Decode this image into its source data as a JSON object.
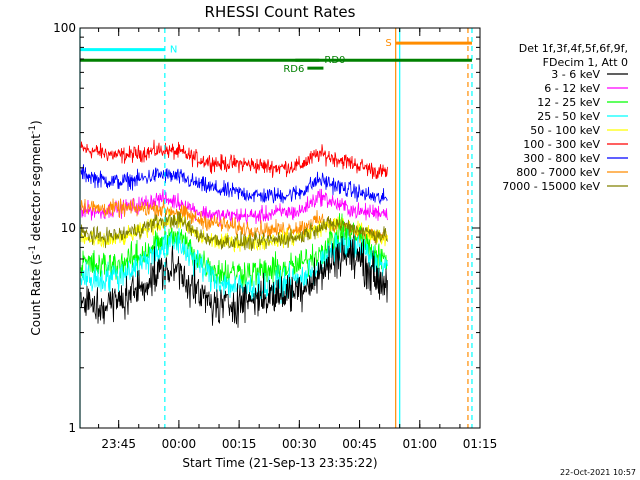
{
  "chart_data": {
    "type": "line",
    "title": "RHESSI Count Rates",
    "xlabel": "Start Time (21-Sep-13 23:35:22)",
    "ylabel_main": "Count Rate (s",
    "ylabel_sup1": "-1",
    "ylabel_mid": " detector segment",
    "ylabel_sup2": "-1",
    "ylabel_end": ")",
    "y_scale": "log",
    "ylim": [
      1,
      100
    ],
    "xlim": [
      "23:35:22",
      "01:15:00"
    ],
    "x_ticks": [
      "23:45",
      "00:00",
      "00:15",
      "00:30",
      "00:45",
      "01:00",
      "01:15"
    ],
    "y_ticks": [
      "1",
      "10",
      "100"
    ],
    "legend_header": [
      "Det 1f,3f,4f,5f,6f,9f,",
      "FDecim 1, Att 0"
    ],
    "legend_position": "right",
    "series": [
      {
        "name": "3 - 6 keV",
        "color": "#000000",
        "x": [
          "23:35:22",
          "23:40",
          "23:45",
          "23:50",
          "23:55",
          "00:00",
          "00:05",
          "00:10",
          "00:15",
          "00:20",
          "00:25",
          "00:30",
          "00:35",
          "00:40",
          "00:45",
          "00:50"
        ],
        "values": [
          4.2,
          4.0,
          4.3,
          5.0,
          6.0,
          6.3,
          4.6,
          4.0,
          4.3,
          4.5,
          4.6,
          5.0,
          5.8,
          7.5,
          7.0,
          5.4
        ]
      },
      {
        "name": "6 - 12 keV",
        "color": "#ff00ff",
        "x": [
          "23:35:22",
          "23:40",
          "23:45",
          "23:50",
          "23:55",
          "00:00",
          "00:05",
          "00:10",
          "00:15",
          "00:20",
          "00:25",
          "00:30",
          "00:35",
          "00:40",
          "00:45",
          "00:50"
        ],
        "values": [
          12.5,
          12.0,
          12.5,
          13.0,
          14.0,
          13.5,
          12.0,
          11.5,
          11.5,
          11.5,
          12.0,
          12.0,
          14.5,
          13.0,
          12.0,
          12.0
        ]
      },
      {
        "name": "12 - 25 keV",
        "color": "#00ff00",
        "x": [
          "23:35:22",
          "23:40",
          "23:45",
          "23:50",
          "23:55",
          "00:00",
          "00:05",
          "00:10",
          "00:15",
          "00:20",
          "00:25",
          "00:30",
          "00:35",
          "00:40",
          "00:45",
          "00:50"
        ],
        "values": [
          6.8,
          6.4,
          6.6,
          7.2,
          8.5,
          9.0,
          7.0,
          6.0,
          6.0,
          6.0,
          6.2,
          6.5,
          7.5,
          9.5,
          9.0,
          7.0
        ]
      },
      {
        "name": "25 - 50 keV",
        "color": "#00ffff",
        "x": [
          "23:35:22",
          "23:40",
          "23:45",
          "23:50",
          "23:55",
          "00:00",
          "00:05",
          "00:10",
          "00:15",
          "00:20",
          "00:25",
          "00:30",
          "00:35",
          "00:40",
          "00:45",
          "00:50"
        ],
        "values": [
          5.8,
          5.5,
          5.8,
          6.5,
          7.8,
          8.5,
          6.5,
          5.4,
          5.0,
          5.0,
          5.2,
          5.5,
          6.5,
          8.2,
          8.0,
          6.5
        ]
      },
      {
        "name": "50 - 100 keV",
        "color": "#ffff00",
        "x": [
          "23:35:22",
          "23:40",
          "23:45",
          "23:50",
          "23:55",
          "00:00",
          "00:05",
          "00:10",
          "00:15",
          "00:20",
          "00:25",
          "00:30",
          "00:35",
          "00:40",
          "00:45",
          "00:50"
        ],
        "values": [
          9.0,
          8.5,
          8.8,
          9.5,
          10.5,
          11.0,
          9.0,
          8.5,
          8.5,
          8.5,
          8.8,
          9.0,
          10.0,
          10.5,
          9.8,
          9.0
        ]
      },
      {
        "name": "100 - 300 keV",
        "color": "#ff0000",
        "x": [
          "23:35:22",
          "23:40",
          "23:45",
          "23:50",
          "23:55",
          "00:00",
          "00:05",
          "00:10",
          "00:15",
          "00:20",
          "00:25",
          "00:30",
          "00:35",
          "00:40",
          "00:45",
          "00:50"
        ],
        "values": [
          25.0,
          24.0,
          23.0,
          23.5,
          24.5,
          24.0,
          22.0,
          21.0,
          21.0,
          20.5,
          20.0,
          20.5,
          23.5,
          22.0,
          20.5,
          19.0
        ]
      },
      {
        "name": "300 - 800 keV",
        "color": "#0000ff",
        "x": [
          "23:35:22",
          "23:40",
          "23:45",
          "23:50",
          "23:55",
          "00:00",
          "00:05",
          "00:10",
          "00:15",
          "00:20",
          "00:25",
          "00:30",
          "00:35",
          "00:40",
          "00:45",
          "00:50"
        ],
        "values": [
          19.0,
          17.5,
          17.0,
          17.5,
          18.5,
          18.0,
          16.5,
          15.5,
          15.0,
          14.5,
          14.5,
          15.0,
          17.5,
          16.0,
          15.0,
          14.0
        ]
      },
      {
        "name": "800 - 7000 keV",
        "color": "#ff8c00",
        "x": [
          "23:35:22",
          "23:40",
          "23:45",
          "23:50",
          "23:55",
          "00:00",
          "00:05",
          "00:10",
          "00:15",
          "00:20",
          "00:25",
          "00:30",
          "00:35",
          "00:40",
          "00:45",
          "00:50"
        ],
        "values": [
          13.0,
          12.5,
          12.5,
          12.5,
          12.5,
          12.0,
          11.0,
          10.5,
          10.0,
          9.8,
          9.8,
          10.0,
          11.0,
          10.0,
          9.5,
          9.0
        ]
      },
      {
        "name": "7000 - 15000 keV",
        "color": "#808000",
        "x": [
          "23:35:22",
          "23:40",
          "23:45",
          "23:50",
          "23:55",
          "00:00",
          "00:05",
          "00:10",
          "00:15",
          "00:20",
          "00:25",
          "00:30",
          "00:35",
          "00:40",
          "00:45",
          "00:50"
        ],
        "values": [
          9.5,
          9.0,
          9.2,
          9.8,
          10.8,
          11.0,
          9.2,
          8.6,
          8.5,
          8.5,
          8.8,
          9.0,
          10.2,
          10.5,
          9.8,
          9.2
        ]
      }
    ],
    "data_end": "00:52",
    "annotations": [
      {
        "label": "N",
        "color": "#00ffff",
        "x_start": "23:35:22",
        "x_end": "23:56:30",
        "level_y": 78
      },
      {
        "label": "S",
        "color": "#ff8c00",
        "x_start": "00:54",
        "x_end": "01:13",
        "level_y": 84
      },
      {
        "label": "RD0",
        "color": "#008000",
        "x_start": "00:29",
        "x_end": "00:35",
        "level_y": 69
      },
      {
        "label": "RD6",
        "color": "#008000",
        "x_start": "00:32",
        "x_end": "00:36",
        "level_y": 63
      }
    ],
    "green_band_y": 69,
    "vertical_markers": [
      {
        "x": "23:35:22",
        "color": "#00ffff",
        "style": "solid"
      },
      {
        "x": "23:56:30",
        "color": "#00ffff",
        "style": "dashed"
      },
      {
        "x": "00:54",
        "color": "#ff8c00",
        "style": "solid"
      },
      {
        "x": "00:55",
        "color": "#00ffff",
        "style": "solid"
      },
      {
        "x": "01:12",
        "color": "#ff8c00",
        "style": "dashed"
      },
      {
        "x": "01:13",
        "color": "#00ffff",
        "style": "dashed"
      }
    ],
    "footer": "22-Oct-2021 10:57"
  }
}
